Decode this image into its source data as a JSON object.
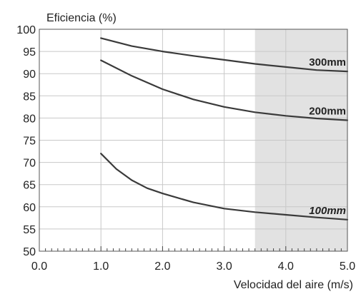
{
  "chart_data": {
    "type": "line",
    "ylabel": "Eficiencia (%)",
    "xlabel": "Velocidad del aire (m/s)",
    "xlim": [
      0.0,
      5.0
    ],
    "ylim": [
      50,
      100
    ],
    "x_ticks": [
      "0.0",
      "1.0",
      "2.0",
      "3.0",
      "4.0",
      "5.0"
    ],
    "y_ticks": [
      "50",
      "55",
      "60",
      "65",
      "70",
      "75",
      "80",
      "85",
      "90",
      "95",
      "100"
    ],
    "grid": true,
    "shaded_region": {
      "x_from": 3.5,
      "x_to": 5.0,
      "color": "#e2e2e2"
    },
    "series": [
      {
        "name": "300mm",
        "color": "#3a3a3a",
        "x": [
          1.0,
          1.5,
          2.0,
          2.5,
          3.0,
          3.5,
          4.0,
          4.5,
          5.0
        ],
        "y": [
          98.0,
          96.2,
          95.0,
          94.0,
          93.1,
          92.2,
          91.5,
          90.8,
          90.5
        ]
      },
      {
        "name": "200mm",
        "color": "#3a3a3a",
        "x": [
          1.0,
          1.5,
          2.0,
          2.5,
          3.0,
          3.5,
          4.0,
          4.5,
          5.0
        ],
        "y": [
          93.0,
          89.5,
          86.5,
          84.2,
          82.5,
          81.3,
          80.5,
          79.9,
          79.5
        ]
      },
      {
        "name": "100mm",
        "color": "#3a3a3a",
        "x": [
          1.0,
          1.25,
          1.5,
          1.75,
          2.0,
          2.5,
          3.0,
          3.5,
          4.0,
          4.5,
          5.0
        ],
        "y": [
          72.0,
          68.5,
          66.0,
          64.2,
          63.0,
          61.0,
          59.6,
          58.8,
          58.2,
          57.6,
          57.1
        ]
      }
    ]
  }
}
